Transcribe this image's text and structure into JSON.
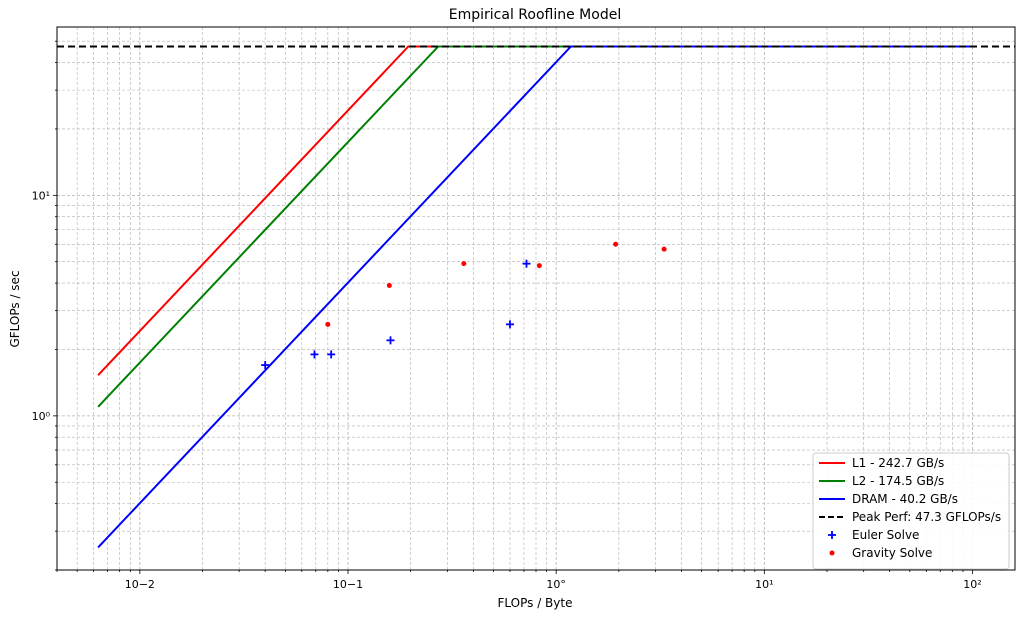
{
  "chart_data": {
    "type": "line",
    "title": "Empirical Roofline Model",
    "xlabel": "FLOPs / Byte",
    "ylabel": "GFLOPs / sec",
    "xscale": "log",
    "yscale": "log",
    "xlim": [
      0.004,
      160
    ],
    "ylim": [
      0.2,
      58
    ],
    "x_tick_labels": [
      "10−2",
      "10−1",
      "10°",
      "10¹",
      "10²"
    ],
    "x_ticks": [
      0.01,
      0.1,
      1,
      10,
      100
    ],
    "y_tick_labels": [
      "10⁰",
      "10¹"
    ],
    "y_ticks": [
      1,
      10
    ],
    "grid": true,
    "legend_position": "bottom-right",
    "peak_gflops": 47.3,
    "series": [
      {
        "name": "L1 - 242.7 GB/s",
        "kind": "roofline",
        "bandwidth": 242.7,
        "x_range": [
          0.0063,
          100
        ],
        "color": "#ff0000"
      },
      {
        "name": "L2 - 174.5 GB/s",
        "kind": "roofline",
        "bandwidth": 174.5,
        "x_range": [
          0.0063,
          100
        ],
        "color": "#008000"
      },
      {
        "name": "DRAM - 40.2 GB/s",
        "kind": "roofline",
        "bandwidth": 40.2,
        "x_range": [
          0.0063,
          100
        ],
        "color": "#0000ff"
      },
      {
        "name": "Peak Perf: 47.3 GFLOPs/s",
        "kind": "hline",
        "y": 47.3,
        "color": "#000000",
        "dashed": true
      },
      {
        "name": "Euler Solve",
        "kind": "scatter",
        "marker": "plus",
        "color": "#0000ff",
        "points": [
          [
            0.04,
            1.7
          ],
          [
            0.069,
            1.9
          ],
          [
            0.083,
            1.9
          ],
          [
            0.16,
            2.2
          ],
          [
            0.6,
            2.6
          ],
          [
            0.72,
            4.9
          ]
        ]
      },
      {
        "name": "Gravity Solve",
        "kind": "scatter",
        "marker": "dot",
        "color": "#ff0000",
        "points": [
          [
            0.08,
            2.6
          ],
          [
            0.158,
            3.9
          ],
          [
            0.36,
            4.9
          ],
          [
            0.83,
            4.8
          ],
          [
            1.93,
            6.0
          ],
          [
            3.3,
            5.7
          ]
        ]
      }
    ]
  }
}
